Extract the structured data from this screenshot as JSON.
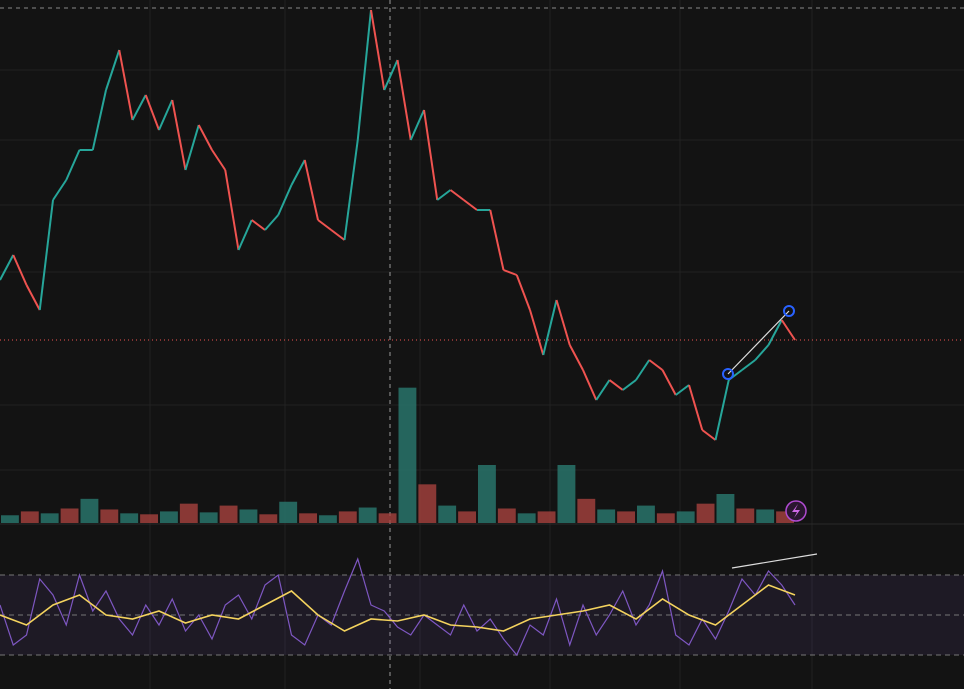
{
  "chart_data": [
    {
      "type": "price-line",
      "up_color": "#26a69a",
      "down_color": "#ef5350",
      "ylim": [
        0,
        100
      ],
      "values": [
        44,
        49,
        43,
        38,
        60,
        64,
        70,
        70,
        82,
        90,
        76,
        81,
        74,
        80,
        66,
        75,
        70,
        66,
        50,
        56,
        54,
        57,
        63,
        68,
        56,
        54,
        52,
        72,
        98,
        82,
        88,
        72,
        78,
        60,
        62,
        60,
        58,
        58,
        46,
        45,
        38,
        29,
        40,
        31,
        26,
        20,
        24,
        22,
        24,
        28,
        26,
        21,
        23,
        14,
        12,
        24,
        26,
        28,
        31,
        36,
        32
      ]
    },
    {
      "type": "bar",
      "colors": [
        "#2b7a70",
        "#a8423f"
      ],
      "ylim": [
        0,
        150
      ],
      "values": [
        8,
        12,
        10,
        15,
        25,
        14,
        10,
        9,
        12,
        20,
        11,
        18,
        14,
        9,
        22,
        10,
        8,
        12,
        16,
        10,
        140,
        40,
        18,
        12,
        60,
        15,
        10,
        12,
        60,
        25,
        14,
        12,
        18,
        10,
        12,
        20,
        30,
        15,
        14,
        12
      ]
    },
    {
      "type": "line",
      "ylim": [
        0,
        100
      ],
      "levels": [
        30,
        50,
        70
      ],
      "band": [
        30,
        70
      ],
      "series": [
        {
          "color": "#7e57c2",
          "values": [
            55,
            35,
            40,
            68,
            60,
            45,
            70,
            52,
            62,
            48,
            40,
            55,
            45,
            58,
            42,
            50,
            38,
            55,
            60,
            48,
            65,
            70,
            40,
            35,
            50,
            45,
            62,
            78,
            55,
            52,
            44,
            40,
            50,
            45,
            40,
            55,
            42,
            48,
            38,
            30,
            45,
            40,
            58,
            35,
            55,
            40,
            50,
            62,
            45,
            55,
            72,
            40,
            35,
            48,
            38,
            52,
            68,
            60,
            72,
            65,
            55
          ]
        },
        {
          "color": "#f4d35e",
          "values": [
            50,
            45,
            55,
            60,
            50,
            48,
            52,
            46,
            50,
            48,
            55,
            62,
            50,
            42,
            48,
            47,
            50,
            45,
            44,
            42,
            48,
            50,
            52,
            55,
            48,
            58,
            50,
            45,
            55,
            65,
            60
          ]
        }
      ]
    }
  ]
}
